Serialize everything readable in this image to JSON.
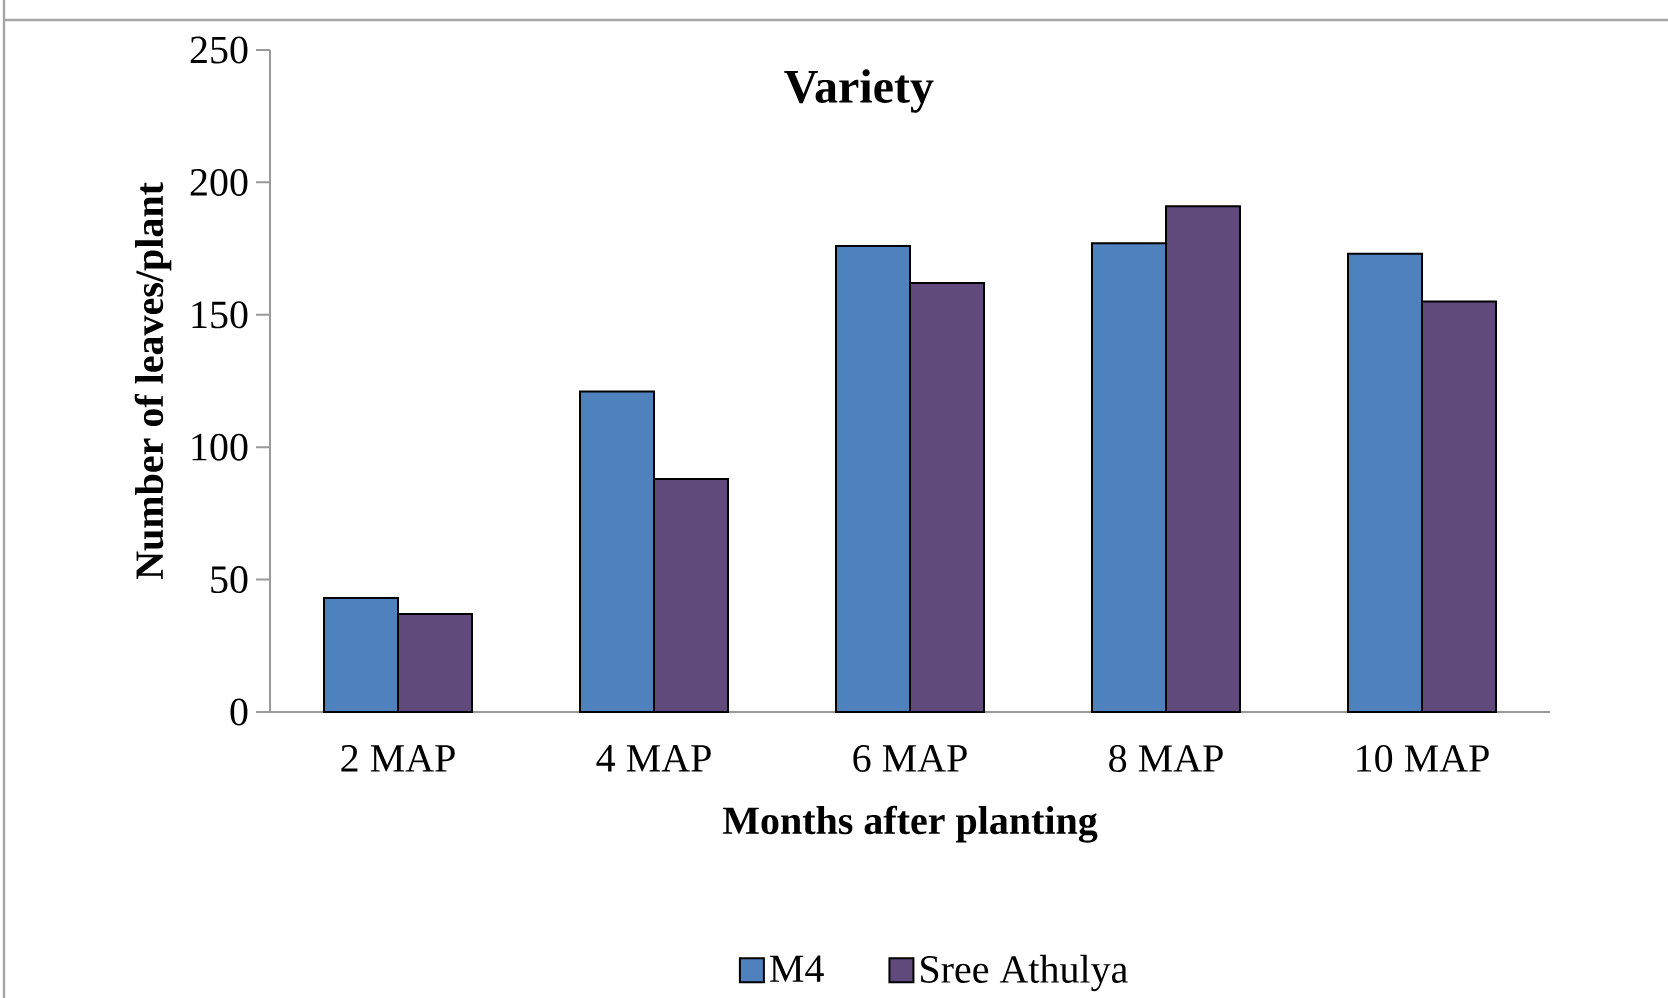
{
  "chart_data": {
    "type": "bar",
    "title": "Variety",
    "xlabel": "Months after planting",
    "ylabel": "Number of leaves/plant",
    "categories": [
      "2 MAP",
      "4 MAP",
      "6 MAP",
      "8 MAP",
      "10 MAP"
    ],
    "series": [
      {
        "name": "M4",
        "color": "#4f81bd",
        "values": [
          43,
          121,
          176,
          177,
          173
        ]
      },
      {
        "name": "Sree Athulya",
        "color": "#604a7b",
        "values": [
          37,
          88,
          162,
          191,
          155
        ]
      }
    ],
    "ylim": [
      0,
      250
    ],
    "yticks": [
      0,
      50,
      100,
      150,
      200,
      250
    ],
    "grid": false,
    "legend": "bottom"
  }
}
